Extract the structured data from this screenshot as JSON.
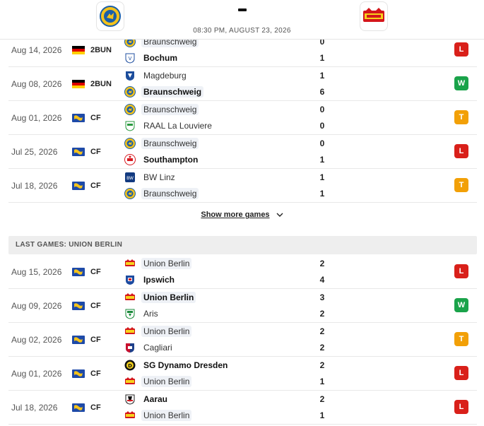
{
  "header": {
    "match_time": "08:30 PM, AUGUST 23, 2026",
    "home_logo_icon": "braunschweig-crest-icon",
    "away_logo_icon": "union-berlin-crest-icon"
  },
  "show_more_label": "Show more games",
  "section_union": "LAST GAMES: UNION BERLIN",
  "braunschweig_games": [
    {
      "date": "Aug 14, 2026",
      "comp": "2BUN",
      "flag": "germany",
      "home": "Braunschweig",
      "away": "Bochum",
      "home_score": "0",
      "away_score": "1",
      "result": "L",
      "hl": "home",
      "win": "away"
    },
    {
      "date": "Aug 08, 2026",
      "comp": "2BUN",
      "flag": "germany",
      "home": "Magdeburg",
      "away": "Braunschweig",
      "home_score": "1",
      "away_score": "6",
      "result": "W",
      "hl": "away",
      "win": "away"
    },
    {
      "date": "Aug 01, 2026",
      "comp": "CF",
      "flag": "world",
      "home": "Braunschweig",
      "away": "RAAL La Louviere",
      "home_score": "0",
      "away_score": "0",
      "result": "T",
      "hl": "home",
      "win": ""
    },
    {
      "date": "Jul 25, 2026",
      "comp": "CF",
      "flag": "world",
      "home": "Braunschweig",
      "away": "Southampton",
      "home_score": "0",
      "away_score": "1",
      "result": "L",
      "hl": "home",
      "win": "away"
    },
    {
      "date": "Jul 18, 2026",
      "comp": "CF",
      "flag": "world",
      "home": "BW Linz",
      "away": "Braunschweig",
      "home_score": "1",
      "away_score": "1",
      "result": "T",
      "hl": "away",
      "win": ""
    }
  ],
  "union_games": [
    {
      "date": "Aug 15, 2026",
      "comp": "CF",
      "flag": "world",
      "home": "Union Berlin",
      "away": "Ipswich",
      "home_score": "2",
      "away_score": "4",
      "result": "L",
      "hl": "home",
      "win": "away"
    },
    {
      "date": "Aug 09, 2026",
      "comp": "CF",
      "flag": "world",
      "home": "Union Berlin",
      "away": "Aris",
      "home_score": "3",
      "away_score": "2",
      "result": "W",
      "hl": "home",
      "win": "home"
    },
    {
      "date": "Aug 02, 2026",
      "comp": "CF",
      "flag": "world",
      "home": "Union Berlin",
      "away": "Cagliari",
      "home_score": "2",
      "away_score": "2",
      "result": "T",
      "hl": "home",
      "win": ""
    },
    {
      "date": "Aug 01, 2026",
      "comp": "CF",
      "flag": "world",
      "home": "SG Dynamo Dresden",
      "away": "Union Berlin",
      "home_score": "2",
      "away_score": "1",
      "result": "L",
      "hl": "away",
      "win": "home"
    },
    {
      "date": "Jul 18, 2026",
      "comp": "CF",
      "flag": "world",
      "home": "Aarau",
      "away": "Union Berlin",
      "home_score": "2",
      "away_score": "1",
      "result": "L",
      "hl": "away",
      "win": "home"
    }
  ],
  "colors": {
    "loss": "#d9201a",
    "win": "#1aa34a",
    "tie": "#f2a007",
    "highlight": "#eef1f6"
  }
}
